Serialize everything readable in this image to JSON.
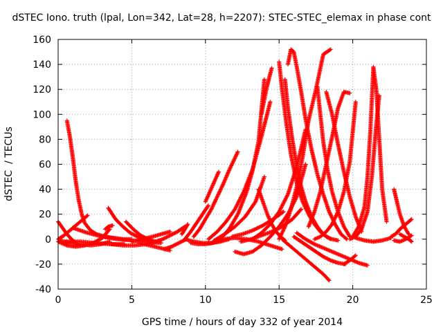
{
  "chart_data": {
    "type": "scatter",
    "title": "dSTEC Iono. truth (lpal, Lon=342, Lat=28, h=2207): STEC-STEC_elemax in phase cont",
    "xlabel": "GPS time / hours of day 332 of year 2014",
    "ylabel": "dSTEC  / TECUs",
    "xlim": [
      0,
      25
    ],
    "ylim": [
      -40,
      160
    ],
    "xticks": [
      0,
      5,
      10,
      15,
      20,
      25
    ],
    "yticks": [
      -40,
      -20,
      0,
      20,
      40,
      60,
      80,
      100,
      120,
      140,
      160
    ],
    "grid": true,
    "marker": "plus",
    "color": "#ff0000",
    "series": [
      {
        "x": [
          0.0,
          0.3,
          0.6,
          0.9,
          1.2
        ],
        "y": [
          14,
          9,
          4,
          0,
          -3
        ]
      },
      {
        "x": [
          0.0,
          0.4,
          0.8,
          1.2,
          1.6,
          2.0
        ],
        "y": [
          0,
          3,
          7,
          11,
          15,
          19
        ]
      },
      {
        "x": [
          0.6,
          0.8,
          1.0,
          1.2,
          1.4,
          1.6,
          1.8,
          2.2,
          2.6,
          3.2,
          3.8,
          4.4,
          5.0
        ],
        "y": [
          95,
          82,
          65,
          46,
          31,
          20,
          13,
          7,
          4,
          2,
          1,
          0,
          0
        ]
      },
      {
        "x": [
          0.0,
          0.6,
          1.2,
          1.8,
          2.4,
          3.0,
          3.5
        ],
        "y": [
          -2,
          -5,
          -6,
          -5,
          -3,
          1,
          8
        ]
      },
      {
        "x": [
          0.1,
          0.8,
          1.5,
          2.2,
          2.9,
          3.5
        ],
        "y": [
          -1,
          -3,
          -4,
          -5,
          -4,
          -2
        ]
      },
      {
        "x": [
          3.2,
          3.4,
          3.7
        ],
        "y": [
          8,
          10,
          11
        ]
      },
      {
        "x": [
          0.5,
          1.5,
          2.5,
          3.5,
          4.5
        ],
        "y": [
          -2,
          -2,
          -3,
          -4,
          -4
        ]
      },
      {
        "x": [
          3.4,
          3.9,
          4.4,
          4.9,
          5.4,
          6.0
        ],
        "y": [
          25,
          16,
          10,
          5,
          2,
          0
        ]
      },
      {
        "x": [
          1.0,
          2.0,
          3.0,
          4.0,
          5.0,
          6.0,
          7.0
        ],
        "y": [
          9,
          5,
          2,
          0,
          -1,
          -2,
          -3
        ]
      },
      {
        "x": [
          3.6,
          4.4,
          5.2,
          6.0,
          6.8
        ],
        "y": [
          -4,
          -5,
          -5,
          -4,
          -2
        ]
      },
      {
        "x": [
          4.6,
          5.1,
          5.6,
          6.1,
          6.6
        ],
        "y": [
          14,
          8,
          3,
          0,
          -2
        ]
      },
      {
        "x": [
          5.0,
          5.7,
          6.4,
          7.0,
          7.6
        ],
        "y": [
          -2,
          0,
          2,
          4,
          6
        ]
      },
      {
        "x": [
          5.5,
          6.2,
          6.9,
          7.6
        ],
        "y": [
          -3,
          -5,
          -7,
          -9
        ]
      },
      {
        "x": [
          6.6,
          7.1,
          7.6,
          8.1,
          8.6
        ],
        "y": [
          -2,
          0,
          3,
          6,
          10
        ]
      },
      {
        "x": [
          7.2,
          7.7,
          8.2,
          8.7
        ],
        "y": [
          -8,
          -6,
          -3,
          0
        ]
      },
      {
        "x": [
          8.4,
          8.6,
          8.8
        ],
        "y": [
          4,
          8,
          12
        ]
      },
      {
        "x": [
          8.6,
          9.0,
          9.4,
          9.8,
          10.2
        ],
        "y": [
          0,
          6,
          13,
          20,
          27
        ]
      },
      {
        "x": [
          9.0,
          9.5,
          10.0,
          10.5,
          11.0
        ],
        "y": [
          -3,
          -4,
          -4,
          -3,
          -1
        ]
      },
      {
        "x": [
          8.6,
          9.2,
          9.8,
          10.4,
          11.0,
          11.6
        ],
        "y": [
          0,
          -2,
          -3,
          -3,
          -2,
          0
        ]
      },
      {
        "x": [
          9.2,
          9.6,
          10.0,
          10.4,
          10.8,
          11.2,
          11.6,
          12.2
        ],
        "y": [
          2,
          8,
          16,
          24,
          34,
          44,
          55,
          70
        ]
      },
      {
        "x": [
          10.0,
          10.3,
          10.6,
          10.9
        ],
        "y": [
          30,
          38,
          46,
          54
        ]
      },
      {
        "x": [
          10.2,
          10.8,
          11.4,
          12.0,
          12.6,
          13.2,
          13.8,
          14.4
        ],
        "y": [
          0,
          6,
          14,
          24,
          38,
          56,
          82,
          110
        ]
      },
      {
        "x": [
          11.0,
          11.6,
          12.2,
          12.8,
          13.2,
          13.6,
          14.0
        ],
        "y": [
          0,
          8,
          20,
          38,
          55,
          78,
          128
        ]
      },
      {
        "x": [
          10.6,
          11.3,
          12.0,
          12.7,
          13.4,
          14.0
        ],
        "y": [
          -1,
          4,
          10,
          18,
          30,
          50
        ]
      },
      {
        "x": [
          12.0,
          12.6,
          13.2,
          13.8,
          14.4,
          15.0,
          15.6,
          16.2,
          16.8
        ],
        "y": [
          -10,
          -12,
          -10,
          -5,
          2,
          10,
          20,
          34,
          60
        ]
      },
      {
        "x": [
          11.2,
          12.0,
          12.8,
          13.6,
          14.4,
          15.2
        ],
        "y": [
          0,
          1,
          0,
          -2,
          -5,
          -8
        ]
      },
      {
        "x": [
          11.8,
          12.5,
          13.2,
          13.9,
          14.6,
          15.3
        ],
        "y": [
          2,
          4,
          7,
          11,
          16,
          22
        ]
      },
      {
        "x": [
          12.4,
          13.1,
          13.8,
          14.5,
          15.2,
          15.9,
          16.5
        ],
        "y": [
          -2,
          0,
          3,
          6,
          10,
          16,
          24
        ]
      },
      {
        "x": [
          13.2,
          13.8,
          14.4,
          15.0,
          15.6,
          16.2,
          16.8
        ],
        "y": [
          0,
          5,
          12,
          22,
          36,
          58,
          88
        ]
      },
      {
        "x": [
          13.6,
          13.9,
          14.2,
          14.5,
          14.8,
          15.1,
          15.4
        ],
        "y": [
          40,
          30,
          20,
          12,
          6,
          2,
          -1
        ]
      },
      {
        "x": [
          13.8,
          14.1,
          14.3,
          14.5
        ],
        "y": [
          100,
          118,
          128,
          137
        ]
      },
      {
        "x": [
          15.0,
          15.2,
          15.5,
          15.8,
          16.2,
          16.6,
          17.0,
          17.4,
          17.8,
          18.2,
          18.6,
          19.0
        ],
        "y": [
          142,
          120,
          92,
          68,
          45,
          30,
          20,
          12,
          6,
          2,
          0,
          -1
        ]
      },
      {
        "x": [
          15.4,
          15.6,
          15.9,
          16.2,
          16.5,
          16.8,
          17.2,
          17.6,
          18.0,
          18.5
        ],
        "y": [
          128,
          105,
          80,
          58,
          42,
          30,
          18,
          10,
          4,
          0
        ]
      },
      {
        "x": [
          15.0,
          15.4,
          15.8,
          16.2,
          16.6,
          17.0,
          17.5,
          18.0,
          18.5
        ],
        "y": [
          0,
          10,
          24,
          42,
          66,
          95,
          120,
          148,
          152
        ]
      },
      {
        "x": [
          15.6,
          15.8,
          16.0,
          16.2,
          16.5,
          16.8,
          17.2,
          17.6,
          18.0,
          18.4,
          18.8,
          19.2,
          19.6
        ],
        "y": [
          140,
          152,
          150,
          138,
          118,
          96,
          72,
          52,
          36,
          22,
          12,
          4,
          0
        ]
      },
      {
        "x": [
          15.2,
          15.6,
          16.0,
          16.4,
          16.8,
          17.2,
          17.6,
          18.0,
          18.4
        ],
        "y": [
          0,
          -4,
          -8,
          -12,
          -16,
          -20,
          -24,
          -28,
          -33
        ]
      },
      {
        "x": [
          16.0,
          16.5,
          17.0,
          17.5,
          18.0,
          18.5,
          19.0,
          19.5
        ],
        "y": [
          2,
          -2,
          -6,
          -10,
          -14,
          -17,
          -19,
          -20
        ]
      },
      {
        "x": [
          16.2,
          16.8,
          17.4,
          18.0,
          18.6,
          19.2,
          19.8,
          20.4,
          21.0
        ],
        "y": [
          5,
          0,
          -4,
          -7,
          -10,
          -13,
          -16,
          -19,
          -21
        ]
      },
      {
        "x": [
          17.6,
          17.8,
          18.0,
          18.3,
          18.6,
          19.0,
          19.4,
          19.8
        ],
        "y": [
          122,
          100,
          78,
          55,
          38,
          22,
          10,
          2
        ]
      },
      {
        "x": [
          17.0,
          17.4,
          17.8,
          18.2,
          18.6,
          19.0,
          19.4,
          19.8
        ],
        "y": [
          10,
          22,
          38,
          60,
          82,
          105,
          118,
          117
        ]
      },
      {
        "x": [
          17.4,
          17.8,
          18.2,
          18.6,
          19.0,
          19.4,
          19.8,
          20.2
        ],
        "y": [
          0,
          2,
          6,
          12,
          22,
          38,
          62,
          110
        ]
      },
      {
        "x": [
          18.2,
          18.6,
          19.0,
          19.4,
          19.8,
          20.2,
          20.6
        ],
        "y": [
          118,
          100,
          76,
          54,
          34,
          18,
          6
        ]
      },
      {
        "x": [
          19.8,
          20.2,
          20.6,
          21.0,
          21.3,
          21.6,
          21.8
        ],
        "y": [
          0,
          2,
          8,
          22,
          50,
          92,
          115
        ]
      },
      {
        "x": [
          20.0,
          20.4,
          20.8,
          21.0,
          21.2,
          21.4,
          21.6,
          21.8,
          22.0,
          22.3
        ],
        "y": [
          2,
          10,
          26,
          50,
          88,
          138,
          120,
          80,
          40,
          14
        ]
      },
      {
        "x": [
          19.4,
          19.8,
          20.2
        ],
        "y": [
          -20,
          -17,
          -13
        ]
      },
      {
        "x": [
          20.2,
          20.8,
          21.4,
          22.0,
          22.6
        ],
        "y": [
          1,
          -1,
          -2,
          -1,
          1
        ]
      },
      {
        "x": [
          22.6,
          22.9,
          23.2,
          23.5,
          23.8,
          24.0
        ],
        "y": [
          2,
          4,
          8,
          11,
          14,
          16
        ]
      },
      {
        "x": [
          22.8,
          23.0,
          23.2,
          23.5,
          23.8
        ],
        "y": [
          40,
          30,
          20,
          10,
          4
        ]
      },
      {
        "x": [
          22.8,
          23.2,
          23.6,
          24.0
        ],
        "y": [
          -1,
          -2,
          0,
          3
        ]
      },
      {
        "x": [
          23.2,
          23.5,
          23.8,
          24.0
        ],
        "y": [
          4,
          2,
          0,
          -2
        ]
      }
    ]
  }
}
